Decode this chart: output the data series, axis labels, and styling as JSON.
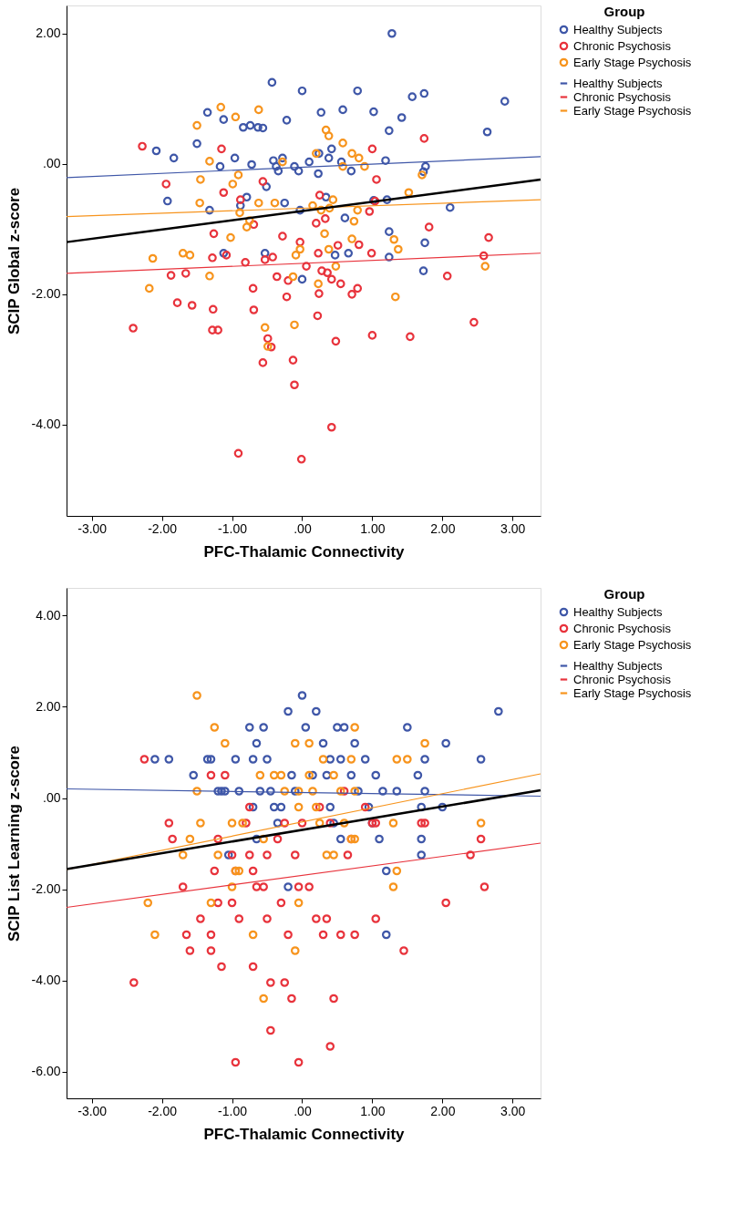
{
  "chart_data": [
    {
      "type": "scatter",
      "xlabel": "PFC-Thalamic Connectivity",
      "ylabel": "SCIP Global z-score",
      "legend_title": "Group",
      "legend": "top right",
      "grid": false,
      "marker": "circle",
      "xlim": [
        -3.36,
        3.4
      ],
      "ylim": [
        -5.4,
        2.43
      ],
      "xticks": [
        {
          "value": -3,
          "label": "-3.00"
        },
        {
          "value": -2,
          "label": "-2.00"
        },
        {
          "value": -1,
          "label": "-1.00"
        },
        {
          "value": 0,
          "label": ".00"
        },
        {
          "value": 1,
          "label": "1.00"
        },
        {
          "value": 2,
          "label": "2.00"
        },
        {
          "value": 3,
          "label": "3.00"
        }
      ],
      "yticks": [
        {
          "value": -4,
          "label": "-4.00"
        },
        {
          "value": -2,
          "label": "-2.00"
        },
        {
          "value": 0,
          "label": ".00"
        },
        {
          "value": 2,
          "label": "2.00"
        }
      ],
      "series": [
        {
          "name": "Healthy Subjects",
          "color": "#3f57a8",
          "x": [
            1.28,
            0,
            -0.43,
            0.79,
            1.57,
            1.74,
            2.89,
            2.64,
            0.58,
            -1.35,
            -1.12,
            -0.74,
            -0.56,
            -0.84,
            -0.63,
            -0.22,
            0.27,
            1.02,
            1.42,
            1.24,
            -1.5,
            -2.08,
            -1.83,
            -1.17,
            -0.96,
            -0.72,
            -0.41,
            -0.37,
            -0.34,
            -0.28,
            -0.11,
            -0.05,
            0.1,
            0.23,
            0.38,
            0.42,
            0.56,
            0.7,
            1.19,
            1.76,
            1.73,
            -1.92,
            -1.32,
            -0.88,
            -0.51,
            -0.25,
            -0.03,
            0.34,
            0.61,
            1.02,
            1.21,
            1.24,
            1.75,
            2.11,
            -1.12,
            0,
            1.73,
            1.24,
            0.47,
            0.66,
            -0.53,
            -0.79,
            0.24
          ],
          "values": [
            2.0,
            1.12,
            1.25,
            1.12,
            1.03,
            1.08,
            0.96,
            0.49,
            0.83,
            0.79,
            0.68,
            0.59,
            0.55,
            0.56,
            0.56,
            0.67,
            0.79,
            0.8,
            0.71,
            0.51,
            0.31,
            0.2,
            0.09,
            -0.04,
            0.09,
            -0.01,
            0.05,
            -0.04,
            -0.11,
            0.09,
            -0.04,
            -0.11,
            0.03,
            -0.15,
            0.09,
            0.23,
            0.03,
            -0.11,
            0.05,
            -0.04,
            -0.12,
            -0.57,
            -0.71,
            -0.64,
            -0.35,
            -0.6,
            -0.71,
            -0.51,
            -0.83,
            -0.56,
            -0.55,
            -1.04,
            -1.21,
            -0.67,
            -1.37,
            -1.77,
            -1.64,
            -1.43,
            -1.4,
            -1.37,
            -1.37,
            -0.51,
            0.16
          ]
        },
        {
          "name": "Chronic Psychosis",
          "color": "#e8333c",
          "x": [
            -2.28,
            -1.94,
            -1.87,
            -1.66,
            -1.78,
            -1.57,
            -2.41,
            -1.27,
            -1.28,
            -1.2,
            -1.15,
            -1.12,
            -1.08,
            -1.26,
            -1.28,
            -0.88,
            -0.69,
            -0.81,
            -0.7,
            -0.69,
            -0.56,
            -0.53,
            -0.49,
            -0.44,
            -0.56,
            -0.91,
            -0.36,
            -0.28,
            -0.22,
            -0.2,
            -0.13,
            -0.11,
            -0.01,
            -0.03,
            0.06,
            0.2,
            0.23,
            0.28,
            0.36,
            0.42,
            0.33,
            0.22,
            0.42,
            0.48,
            0.51,
            0.55,
            0.71,
            0.79,
            0.81,
            0.25,
            0.96,
            0.99,
            1.0,
            1.06,
            1.0,
            1.04,
            1.54,
            1.74,
            1.81,
            2.07,
            2.45,
            2.59,
            2.66,
            0.24,
            -0.42
          ],
          "values": [
            0.27,
            -0.31,
            -1.71,
            -1.68,
            -2.13,
            -2.17,
            -2.52,
            -2.23,
            -2.55,
            -2.55,
            0.23,
            -0.44,
            -1.4,
            -1.07,
            -1.44,
            -0.55,
            -0.93,
            -1.51,
            -1.91,
            -2.24,
            -0.27,
            -1.47,
            -2.68,
            -2.81,
            -3.05,
            -4.44,
            -1.73,
            -1.11,
            -2.04,
            -1.79,
            -3.01,
            -3.39,
            -4.53,
            -1.2,
            -1.57,
            -0.91,
            -1.37,
            -1.64,
            -1.67,
            -1.77,
            -0.84,
            -2.33,
            -4.04,
            -2.72,
            -1.25,
            -1.84,
            -2.0,
            -1.91,
            -1.24,
            -0.48,
            -0.73,
            -1.37,
            -2.63,
            -0.24,
            0.23,
            -0.57,
            -2.65,
            0.39,
            -0.97,
            -1.72,
            -2.43,
            -1.41,
            -1.13,
            -1.99,
            -1.43
          ]
        },
        {
          "name": "Early Stage Psychosis",
          "color": "#f7941d",
          "x": [
            -1.5,
            -1.16,
            -0.95,
            -1.45,
            -1.46,
            -1.6,
            -2.13,
            -2.18,
            -1.7,
            -1.32,
            -0.99,
            -0.91,
            -0.89,
            -1.32,
            -1.02,
            -0.79,
            -0.62,
            -0.62,
            -0.75,
            -0.39,
            -0.28,
            -0.09,
            -0.03,
            -0.13,
            -0.53,
            -0.49,
            -0.11,
            0.2,
            0.34,
            0.38,
            0.58,
            0.71,
            0.81,
            0.89,
            0.58,
            0.74,
            0.79,
            0.44,
            0.27,
            0.32,
            0.38,
            0.48,
            0.23,
            0.39,
            0.71,
            1.31,
            1.37,
            1.33,
            1.52,
            1.71,
            2.61,
            0.15
          ],
          "values": [
            0.59,
            0.87,
            0.72,
            -0.24,
            -0.6,
            -1.4,
            -1.45,
            -1.91,
            -1.37,
            0.04,
            -0.31,
            -0.17,
            -0.75,
            -1.72,
            -1.13,
            -0.97,
            -0.6,
            0.83,
            -0.87,
            -0.6,
            0.03,
            -1.4,
            -1.31,
            -1.73,
            -2.51,
            -2.8,
            -2.47,
            0.16,
            0.52,
            0.43,
            0.32,
            0.16,
            0.09,
            -0.04,
            -0.04,
            -0.88,
            -0.71,
            -0.55,
            -0.71,
            -1.07,
            -1.31,
            -1.57,
            -1.84,
            -0.68,
            -1.15,
            -1.16,
            -1.31,
            -2.04,
            -0.44,
            -0.17,
            -1.57,
            -0.64
          ]
        },
        {
          "name": "Healthy Subjects",
          "type": "line",
          "marker": "none",
          "color": "#3f57a8",
          "x": [
            -3.36,
            3.4
          ],
          "values": [
            -0.21,
            0.11
          ]
        },
        {
          "name": "Chronic Psychosis",
          "type": "line",
          "marker": "none",
          "color": "#e8333c",
          "x": [
            -3.36,
            3.4
          ],
          "values": [
            -1.68,
            -1.37
          ]
        },
        {
          "name": "Early Stage Psychosis",
          "type": "line",
          "marker": "none",
          "color": "#f7941d",
          "x": [
            -3.36,
            3.4
          ],
          "values": [
            -0.81,
            -0.55
          ]
        },
        {
          "type": "line",
          "marker": "none",
          "color": "#000000",
          "x": [
            -3.36,
            3.4
          ],
          "values": [
            -1.2,
            -0.24
          ]
        }
      ]
    },
    {
      "type": "scatter",
      "xlabel": "PFC-Thalamic Connectivity",
      "ylabel": "SCIP List Learning z-score",
      "legend_title": "Group",
      "legend": "top right",
      "grid": false,
      "marker": "circle",
      "xlim": [
        -3.36,
        3.4
      ],
      "ylim": [
        -6.59,
        4.61
      ],
      "xticks": [
        {
          "value": -3,
          "label": "-3.00"
        },
        {
          "value": -2,
          "label": "-2.00"
        },
        {
          "value": -1,
          "label": "-1.00"
        },
        {
          "value": 0,
          "label": ".00"
        },
        {
          "value": 1,
          "label": "1.00"
        },
        {
          "value": 2,
          "label": "2.00"
        },
        {
          "value": 3,
          "label": "3.00"
        }
      ],
      "yticks": [
        {
          "value": -6,
          "label": "-6.00"
        },
        {
          "value": -4,
          "label": "-4.00"
        },
        {
          "value": -2,
          "label": "-2.00"
        },
        {
          "value": 0,
          "label": ".00"
        },
        {
          "value": 2,
          "label": "2.00"
        },
        {
          "value": 4,
          "label": "4.00"
        }
      ],
      "series": [
        {
          "name": "Healthy Subjects",
          "color": "#3f57a8",
          "x": [
            -2.1,
            -1.9,
            -1.55,
            -1.35,
            -1.3,
            -1.2,
            -1.15,
            -1.1,
            -0.95,
            -0.9,
            -0.75,
            -0.7,
            -0.65,
            -0.6,
            -0.7,
            -0.65,
            -0.55,
            -0.45,
            -0.4,
            -0.35,
            -0.2,
            -0.15,
            -0.1,
            -0.05,
            0.0,
            0.05,
            0.2,
            0.3,
            0.35,
            0.4,
            0.4,
            0.5,
            0.55,
            0.6,
            0.55,
            0.7,
            0.75,
            0.8,
            0.9,
            0.95,
            1.0,
            1.05,
            1.1,
            1.15,
            1.2,
            1.2,
            1.35,
            1.5,
            1.65,
            1.7,
            1.7,
            1.7,
            1.75,
            2.05,
            2.0,
            2.55,
            2.8,
            1.75,
            -1.05,
            -0.3,
            -0.2,
            0.45,
            0.15,
            -0.5
          ],
          "values": [
            0.85,
            0.85,
            0.5,
            0.85,
            0.85,
            0.15,
            0.15,
            0.15,
            0.85,
            0.15,
            1.55,
            0.85,
            1.2,
            0.15,
            -0.2,
            -0.9,
            1.55,
            0.15,
            -0.2,
            -0.55,
            1.9,
            0.5,
            0.15,
            null,
            2.25,
            1.55,
            1.9,
            1.2,
            0.5,
            0.85,
            -0.2,
            1.55,
            0.85,
            1.55,
            -0.9,
            0.5,
            1.2,
            0.15,
            0.85,
            -0.2,
            -0.55,
            0.5,
            -0.9,
            0.15,
            -1.6,
            -3.0,
            0.15,
            1.55,
            0.5,
            -0.2,
            -0.9,
            -1.25,
            0.85,
            1.2,
            -0.2,
            0.85,
            1.9,
            0.15,
            -1.25,
            -0.2,
            -1.95,
            -0.55,
            0.5,
            0.85
          ]
        },
        {
          "name": "Chronic Psychosis",
          "color": "#e8333c",
          "x": [
            -2.25,
            -1.9,
            -1.85,
            -1.7,
            -1.65,
            -1.6,
            -1.45,
            -1.3,
            -1.3,
            -1.25,
            -1.2,
            -1.2,
            -1.15,
            -1.1,
            -1.0,
            -0.95,
            -0.9,
            -0.8,
            -0.75,
            -0.75,
            -0.7,
            -0.65,
            -0.55,
            -0.5,
            -0.5,
            -0.45,
            -0.45,
            -0.3,
            -0.25,
            -0.25,
            -0.2,
            -0.15,
            -0.1,
            -0.05,
            -0.05,
            0.0,
            0.1,
            0.2,
            0.25,
            0.3,
            0.35,
            0.4,
            0.4,
            0.45,
            0.55,
            0.6,
            0.65,
            0.75,
            0.9,
            1.0,
            1.05,
            1.45,
            1.7,
            1.75,
            2.05,
            2.4,
            2.55,
            2.6,
            -2.4,
            -0.95,
            -1.3,
            -0.35,
            0.7,
            1.05,
            -0.7,
            -1.0
          ],
          "values": [
            0.85,
            -0.55,
            -0.9,
            -1.95,
            -3.0,
            -3.35,
            -2.65,
            -3.0,
            -3.35,
            -1.6,
            -2.3,
            -0.9,
            -3.7,
            0.5,
            -1.25,
            -1.6,
            -2.65,
            -0.55,
            -0.2,
            -1.25,
            -3.7,
            -1.95,
            -1.95,
            -2.65,
            -1.25,
            -4.05,
            -5.1,
            -2.3,
            -0.55,
            -4.05,
            -3.0,
            -4.4,
            -1.25,
            -1.95,
            -5.8,
            -0.55,
            -1.95,
            -2.65,
            -0.2,
            -3.0,
            -2.65,
            -0.55,
            -5.45,
            -4.4,
            -3.0,
            0.15,
            -1.25,
            -3.0,
            -0.2,
            -0.55,
            -0.55,
            -3.35,
            -0.55,
            -0.55,
            -2.3,
            -1.25,
            -0.9,
            -1.95,
            -4.05,
            -5.8,
            0.5,
            -0.9,
            -0.9,
            -2.65,
            -1.6,
            -2.3
          ]
        },
        {
          "name": "Early Stage Psychosis",
          "color": "#f7941d",
          "x": [
            -1.5,
            -1.25,
            -1.1,
            -1.5,
            -1.0,
            -1.2,
            -0.9,
            -1.6,
            -1.45,
            -2.2,
            -2.1,
            -1.7,
            -1.3,
            -1.0,
            -0.95,
            -0.7,
            -0.55,
            -0.6,
            -0.4,
            -0.3,
            -0.25,
            -0.1,
            -0.05,
            -0.05,
            -0.1,
            -0.05,
            0.1,
            0.1,
            0.15,
            0.2,
            0.25,
            0.3,
            0.35,
            0.45,
            0.55,
            0.6,
            0.7,
            0.75,
            0.75,
            0.7,
            0.75,
            1.35,
            1.3,
            1.35,
            1.3,
            1.75,
            1.5,
            2.55,
            -0.55,
            -0.85,
            0.45
          ],
          "values": [
            2.25,
            1.55,
            1.2,
            0.15,
            -0.55,
            -1.25,
            -1.6,
            -0.9,
            -0.55,
            -2.3,
            -3.0,
            -1.25,
            -2.3,
            -1.95,
            -1.6,
            -3.0,
            -4.4,
            0.5,
            0.5,
            0.5,
            0.15,
            1.2,
            0.15,
            -0.2,
            -3.35,
            -2.3,
            1.2,
            0.5,
            0.15,
            -0.2,
            -0.55,
            0.85,
            -1.25,
            0.5,
            0.15,
            -0.55,
            0.85,
            1.55,
            0.15,
            -0.9,
            -0.9,
            0.85,
            -0.55,
            -1.6,
            -1.95,
            1.2,
            0.85,
            -0.55,
            -0.9,
            -0.55,
            -1.25
          ]
        },
        {
          "name": "Healthy Subjects",
          "type": "line",
          "marker": "none",
          "color": "#3f57a8",
          "x": [
            -3.36,
            3.4
          ],
          "values": [
            0.2,
            0.04
          ]
        },
        {
          "name": "Chronic Psychosis",
          "type": "line",
          "marker": "none",
          "color": "#e8333c",
          "x": [
            -3.36,
            3.4
          ],
          "values": [
            -2.4,
            -0.99
          ]
        },
        {
          "name": "Early Stage Psychosis",
          "type": "line",
          "marker": "none",
          "color": "#f7941d",
          "x": [
            -3.36,
            3.4
          ],
          "values": [
            -1.57,
            0.53
          ]
        },
        {
          "type": "line",
          "marker": "none",
          "color": "#000000",
          "x": [
            -3.36,
            3.4
          ],
          "values": [
            -1.56,
            0.17
          ]
        }
      ]
    }
  ]
}
